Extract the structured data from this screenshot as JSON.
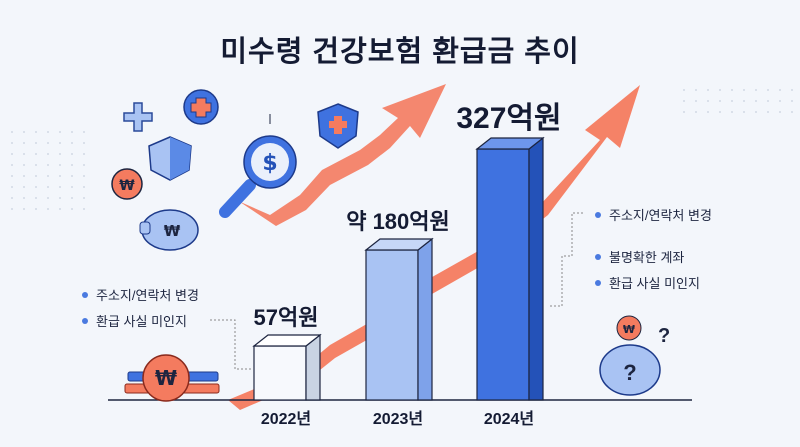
{
  "chart_data": {
    "type": "bar",
    "title": "미수령 건강보험 환급금 추이",
    "categories": [
      "2022년",
      "2023년",
      "2024년"
    ],
    "values": [
      57,
      180,
      327
    ],
    "data_labels": [
      "57억원",
      "약 180억원",
      "327억원"
    ],
    "unit": "억원",
    "ylim": [
      0,
      340
    ],
    "grid": false,
    "colors": {
      "bars": [
        "#f7f9fd",
        "#a9c3f3",
        "#3f72e0"
      ],
      "trend_arrow": "#f47b5f",
      "accent_dark": "#2452b8"
    }
  },
  "notes_left": [
    "주소지/연락처 변경",
    "환급 사실 미인지"
  ],
  "notes_right": [
    "주소지/연락처 변경",
    "불명확한 계좌",
    "환급 사실 미인지"
  ],
  "icons": [
    "plus-icon",
    "medical-badge-icon",
    "shield-icon",
    "shield-cross-icon",
    "won-coin-icon",
    "piggy-bank-icon",
    "magnifier-dollar-icon",
    "coin-stack-icon",
    "question-piggy-icon"
  ]
}
